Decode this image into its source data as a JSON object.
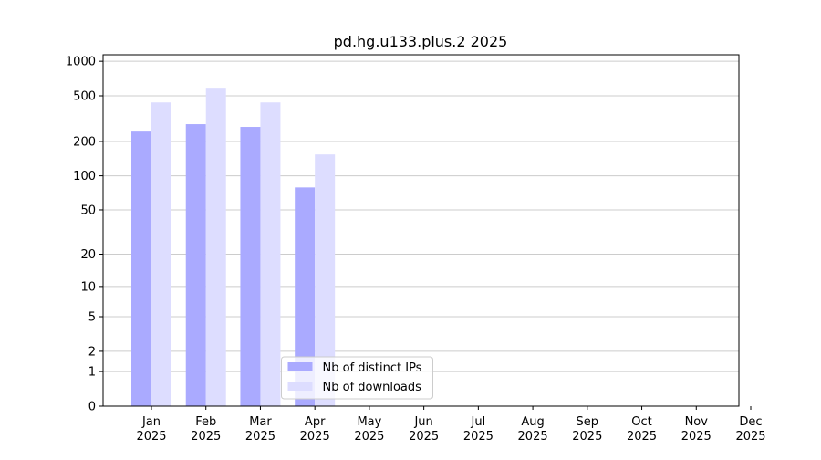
{
  "chart_data": {
    "type": "bar",
    "title": "pd.hg.u133.plus.2 2025",
    "categories": [
      [
        "Jan",
        "2025"
      ],
      [
        "Feb",
        "2025"
      ],
      [
        "Mar",
        "2025"
      ],
      [
        "Apr",
        "2025"
      ],
      [
        "May",
        "2025"
      ],
      [
        "Jun",
        "2025"
      ],
      [
        "Jul",
        "2025"
      ],
      [
        "Aug",
        "2025"
      ],
      [
        "Sep",
        "2025"
      ],
      [
        "Oct",
        "2025"
      ],
      [
        "Nov",
        "2025"
      ],
      [
        "Dec",
        "2025"
      ]
    ],
    "series": [
      {
        "name": "Nb of distinct IPs",
        "color": "#aaaaff",
        "values": [
          244,
          283,
          268,
          79,
          0,
          0,
          0,
          0,
          0,
          0,
          0,
          0
        ]
      },
      {
        "name": "Nb of downloads",
        "color": "#ddddff",
        "values": [
          438,
          588,
          438,
          154,
          0,
          0,
          0,
          0,
          0,
          0,
          0,
          0
        ]
      }
    ],
    "yscale": "log",
    "ylim": [
      0,
      1140
    ],
    "yticks": [
      0,
      1,
      2,
      5,
      10,
      20,
      50,
      100,
      200,
      500,
      1000
    ],
    "grid": true,
    "legend": "lower center"
  }
}
